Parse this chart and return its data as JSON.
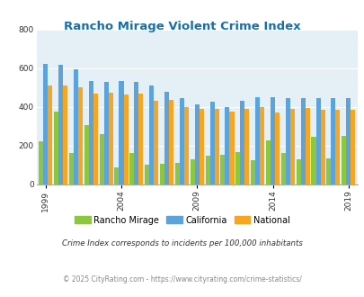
{
  "title": "Rancho Mirage Violent Crime Index",
  "years": [
    1999,
    2000,
    2001,
    2002,
    2003,
    2004,
    2005,
    2006,
    2007,
    2008,
    2009,
    2010,
    2011,
    2012,
    2013,
    2014,
    2015,
    2016,
    2017,
    2018,
    2019
  ],
  "rancho_mirage": [
    220,
    375,
    160,
    305,
    260,
    85,
    160,
    100,
    105,
    110,
    130,
    145,
    150,
    165,
    125,
    225,
    160,
    130,
    245,
    135,
    250
  ],
  "california": [
    625,
    620,
    595,
    535,
    530,
    535,
    530,
    510,
    480,
    445,
    415,
    425,
    400,
    430,
    450,
    450,
    445,
    445,
    445,
    445,
    445
  ],
  "national": [
    510,
    510,
    500,
    470,
    475,
    465,
    470,
    430,
    435,
    400,
    390,
    390,
    375,
    390,
    400,
    370,
    390,
    395,
    385,
    385,
    385
  ],
  "rancho_color": "#8dc63f",
  "california_color": "#5ba3d9",
  "national_color": "#f5a623",
  "bg_color": "#e4f0f5",
  "title_color": "#1a6fa8",
  "yticks": [
    0,
    200,
    400,
    600,
    800
  ],
  "xticks": [
    1999,
    2004,
    2009,
    2014,
    2019
  ],
  "ylabel_max": 800,
  "footnote1": "Crime Index corresponds to incidents per 100,000 inhabitants",
  "footnote2": "© 2025 CityRating.com - https://www.cityrating.com/crime-statistics/",
  "legend_labels": [
    "Rancho Mirage",
    "California",
    "National"
  ]
}
